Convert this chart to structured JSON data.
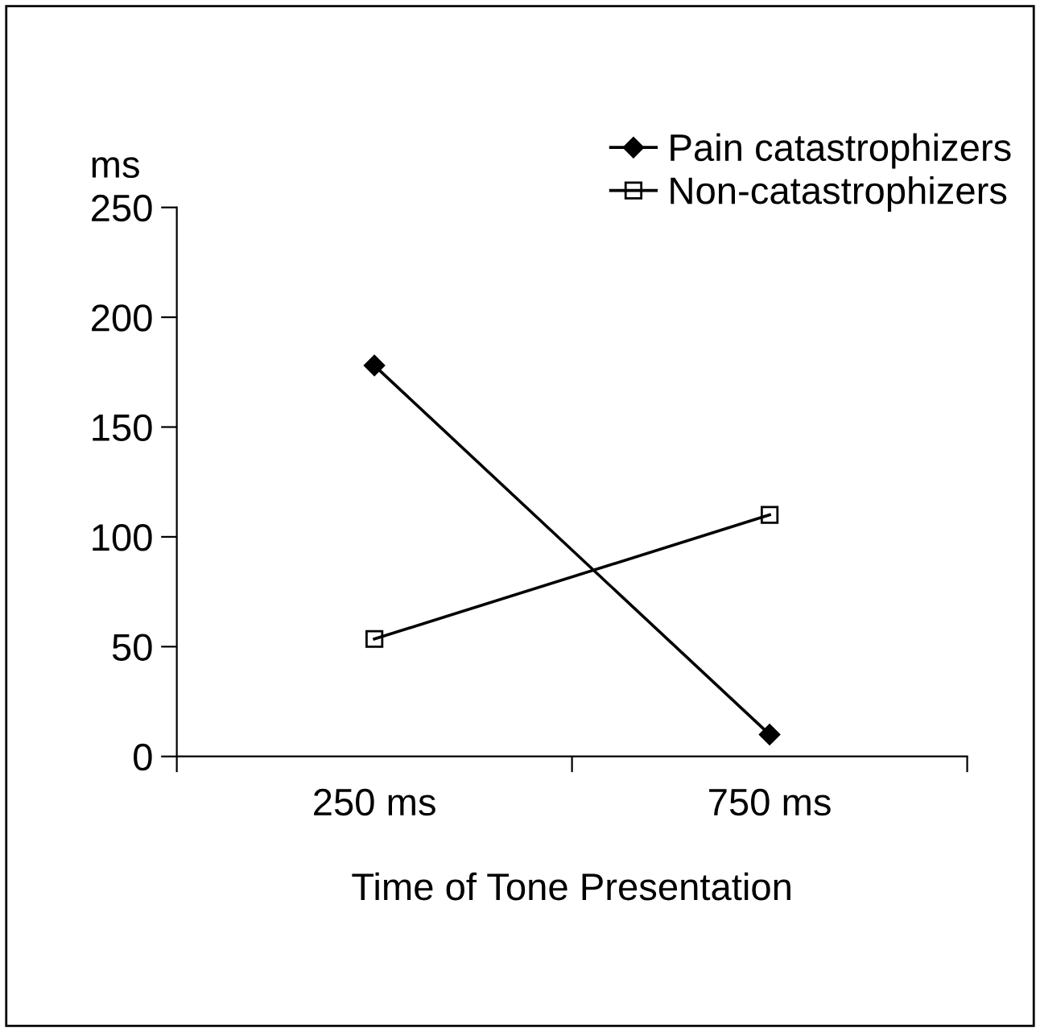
{
  "chart_data": {
    "type": "line",
    "xlabel": "Time of Tone Presentation",
    "ylabel": "ms",
    "categories": [
      "250 ms",
      "750 ms"
    ],
    "series": [
      {
        "name": "Pain catastrophizers",
        "color": "#000000",
        "marker": "diamond",
        "values": [
          178,
          10
        ]
      },
      {
        "name": "Non-catastrophizers",
        "color": "#000000",
        "marker": "square",
        "values": [
          53.5,
          110
        ]
      }
    ],
    "ylim": [
      0,
      250
    ],
    "yticks": [
      0,
      50,
      100,
      150,
      200,
      250
    ],
    "grid": false,
    "legend": "top right",
    "line_style": "solid"
  }
}
